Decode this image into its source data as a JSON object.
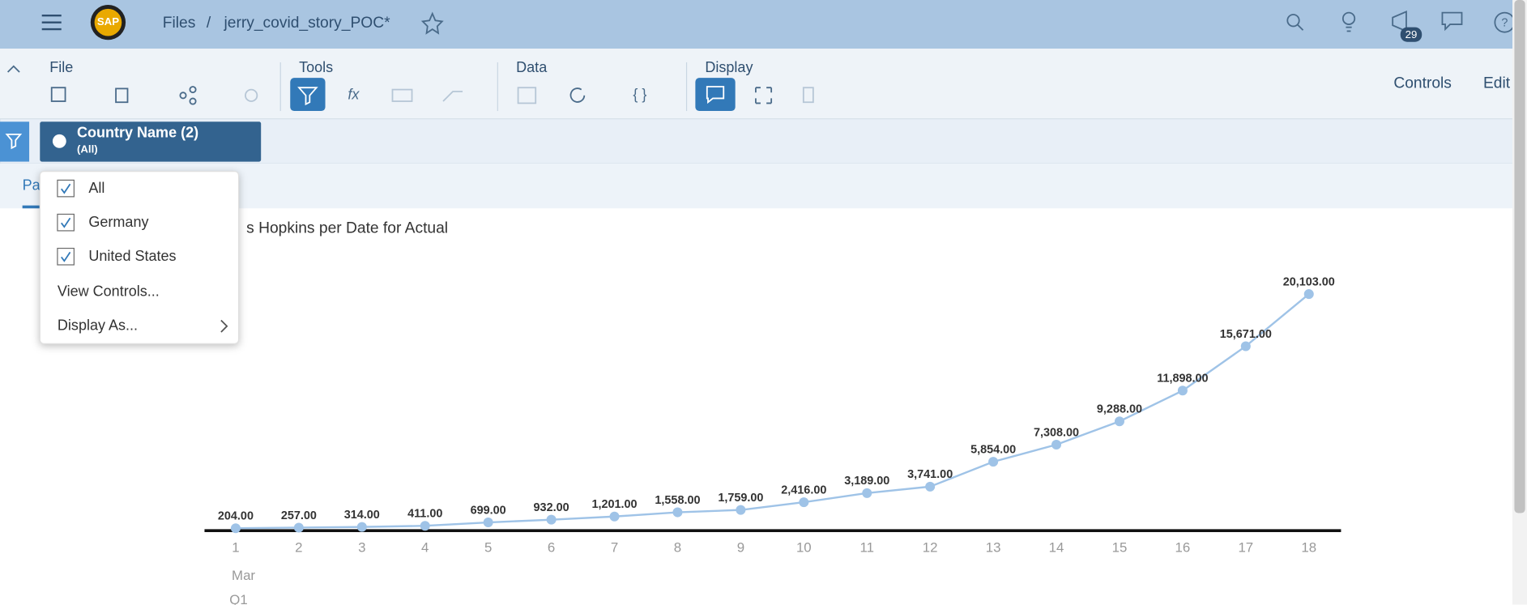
{
  "header": {
    "breadcrumb_root": "Files",
    "separator": "/",
    "file_name": "jerry_covid_story_POC*",
    "notification_count": "29"
  },
  "toolbar": {
    "sections": [
      "File",
      "Tools",
      "Data",
      "Display"
    ],
    "right_actions": [
      "Controls",
      "Edit"
    ]
  },
  "filter": {
    "token_title": "Country Name (2)",
    "token_subtitle": "(All)"
  },
  "tab_label": "Pa",
  "dropdown": {
    "items": [
      "All",
      "Germany",
      "United States"
    ],
    "actions": [
      "View Controls...",
      "Display As..."
    ]
  },
  "chart_data": {
    "type": "line",
    "title": "s Hopkins per Date for Actual",
    "categories": [
      "1",
      "2",
      "3",
      "4",
      "5",
      "6",
      "7",
      "8",
      "9",
      "10",
      "11",
      "12",
      "13",
      "14",
      "15",
      "16",
      "17",
      "18"
    ],
    "month_label": "Mar",
    "quarter_label": "Q1",
    "values": [
      204,
      257,
      314,
      411,
      699,
      932,
      1201,
      1558,
      1759,
      2416,
      3189,
      3741,
      5854,
      7308,
      9288,
      11898,
      15671,
      20103
    ],
    "value_labels": [
      "204.00",
      "257.00",
      "314.00",
      "411.00",
      "699.00",
      "932.00",
      "1,201.00",
      "1,558.00",
      "1,759.00",
      "2,416.00",
      "3,189.00",
      "3,741.00",
      "5,854.00",
      "7,308.00",
      "9,288.00",
      "11,898.00",
      "15,671.00",
      "20,103.00"
    ],
    "color": "#9fc3e7"
  }
}
